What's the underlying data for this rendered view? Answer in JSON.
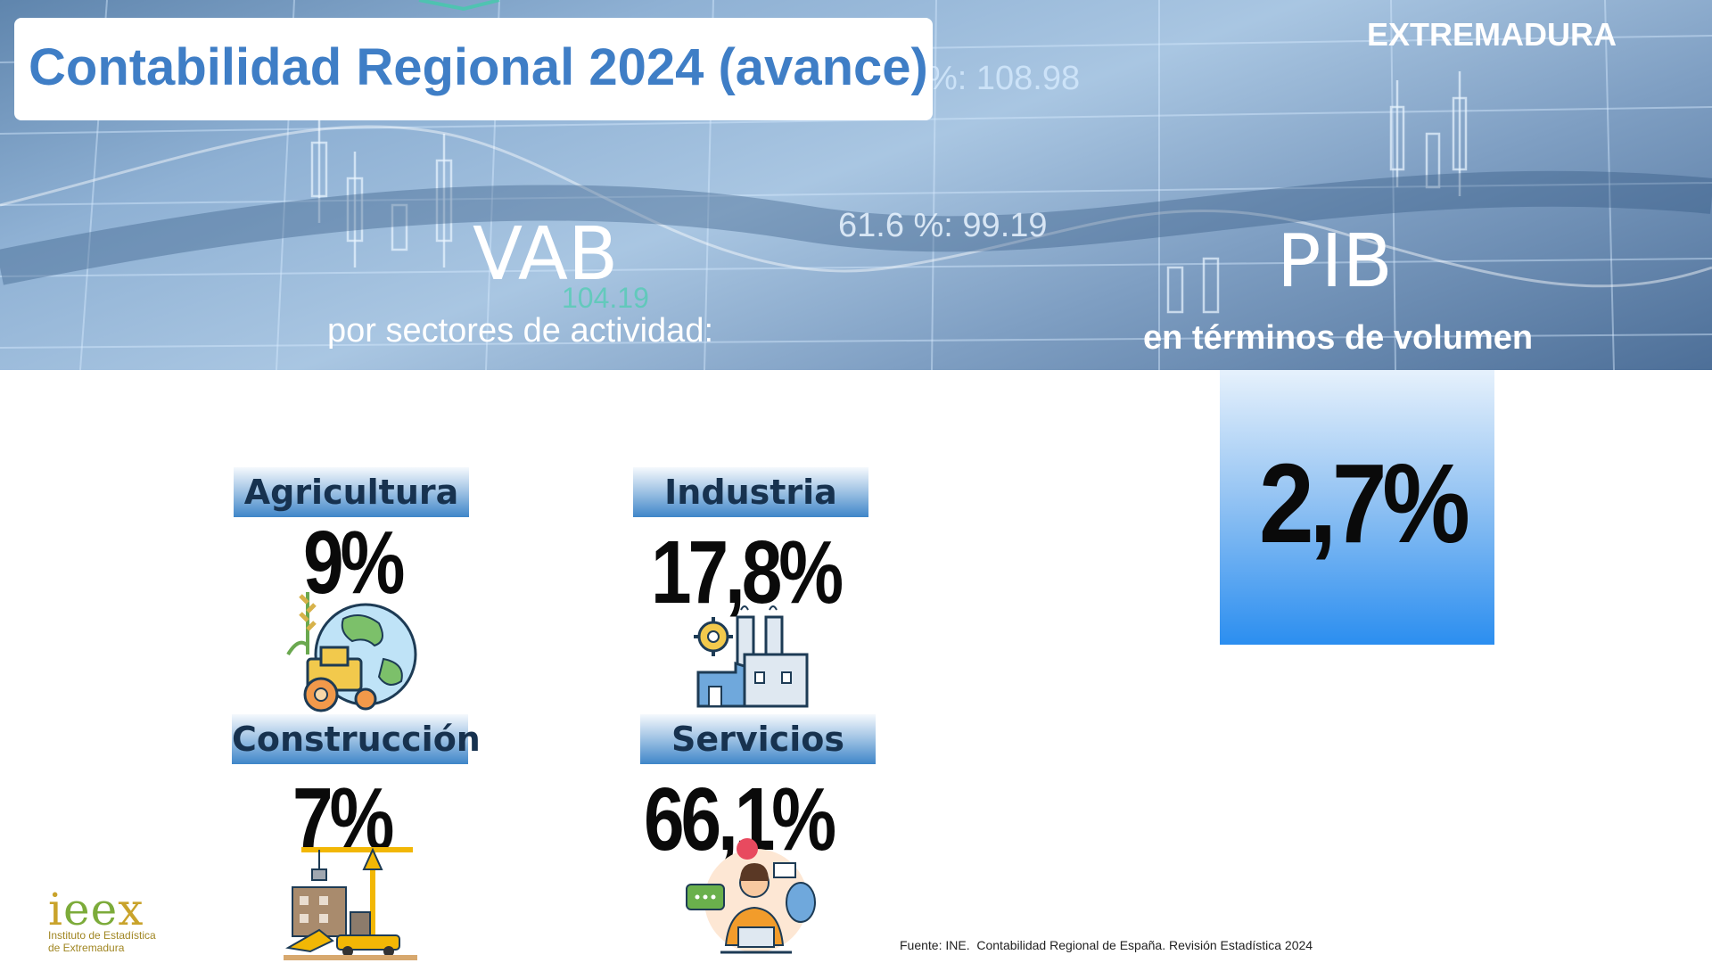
{
  "header": {
    "title": "Contabilidad Regional 2024 (avance)",
    "region": "EXTREMADURA"
  },
  "background_readouts": [
    "%: 108.98",
    "61.6 %: 99.19",
    "104.19"
  ],
  "vab": {
    "title": "VAB",
    "subtitle": "por sectores de actividad:"
  },
  "pib": {
    "title": "PIB",
    "subtitle": "en términos de volumen",
    "value": "2,7%"
  },
  "sectors": [
    {
      "label": "Agricultura",
      "value": "9%",
      "icon": "agriculture-globe-tractor-icon"
    },
    {
      "label": "Industria",
      "value": "17,8%",
      "icon": "factory-gear-icon"
    },
    {
      "label": "Construcción",
      "value": "7%",
      "icon": "construction-crane-icon"
    },
    {
      "label": "Servicios",
      "value": "66,1%",
      "icon": "customer-service-operator-icon"
    }
  ],
  "logo": {
    "main_a": "i",
    "main_b": "e",
    "main_c": "e",
    "main_d": "x",
    "line1": "Instituto de Estadística",
    "line2": "de Extremadura"
  },
  "source": "Fuente: INE.  Contabilidad Regional de España. Revisión Estadística 2024",
  "colors": {
    "title_blue": "#3f7ec6",
    "label_dark": "#17324f",
    "pib_gradient_bottom": "#2b8ef0",
    "logo_gold": "#c9a32b",
    "logo_green": "#7cab3a"
  }
}
